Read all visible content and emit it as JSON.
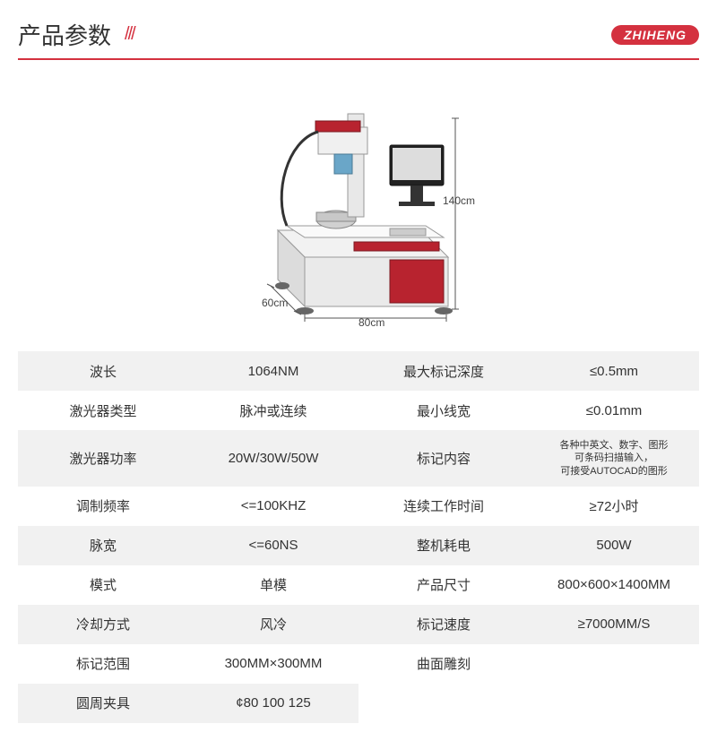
{
  "header": {
    "title": "产品参数",
    "slashes": "///",
    "badge": "ZHIHENG"
  },
  "dimensions": {
    "height": "140cm",
    "width": "80cm",
    "depth": "60cm"
  },
  "table": {
    "rows": [
      {
        "shaded": true,
        "cells": [
          "波长",
          "1064NM",
          "最大标记深度",
          "≤0.5mm"
        ]
      },
      {
        "shaded": false,
        "cells": [
          "激光器类型",
          "脉冲或连续",
          "最小线宽",
          "≤0.01mm"
        ]
      },
      {
        "shaded": true,
        "cells": [
          "激光器功率",
          "20W/30W/50W",
          "标记内容",
          "各种中英文、数字、图形\n可条码扫描输入，\n可接受AUTOCAD的图形"
        ],
        "smallIndex": 3
      },
      {
        "shaded": false,
        "cells": [
          "调制频率",
          "<=100KHZ",
          "连续工作时间",
          "≥72小时"
        ]
      },
      {
        "shaded": true,
        "cells": [
          "脉宽",
          "<=60NS",
          "整机耗电",
          "500W"
        ]
      },
      {
        "shaded": false,
        "cells": [
          "模式",
          "单模",
          "产品尺寸",
          "800×600×1400MM"
        ]
      },
      {
        "shaded": true,
        "cells": [
          "冷却方式",
          "风冷",
          "标记速度",
          "≥7000MM/S"
        ]
      },
      {
        "shaded": false,
        "cells": [
          "标记范围",
          "300MM×300MM",
          "曲面雕刻",
          ""
        ]
      },
      {
        "shaded": true,
        "cells": [
          "圆周夹具",
          "¢80 100 125",
          "",
          ""
        ],
        "span": 2
      }
    ]
  },
  "colors": {
    "accent": "#d4313f",
    "shaded": "#f1f1f1",
    "text": "#333333",
    "machine_body": "#f5f5f5",
    "machine_red": "#b8232f",
    "machine_stroke": "#888888"
  }
}
